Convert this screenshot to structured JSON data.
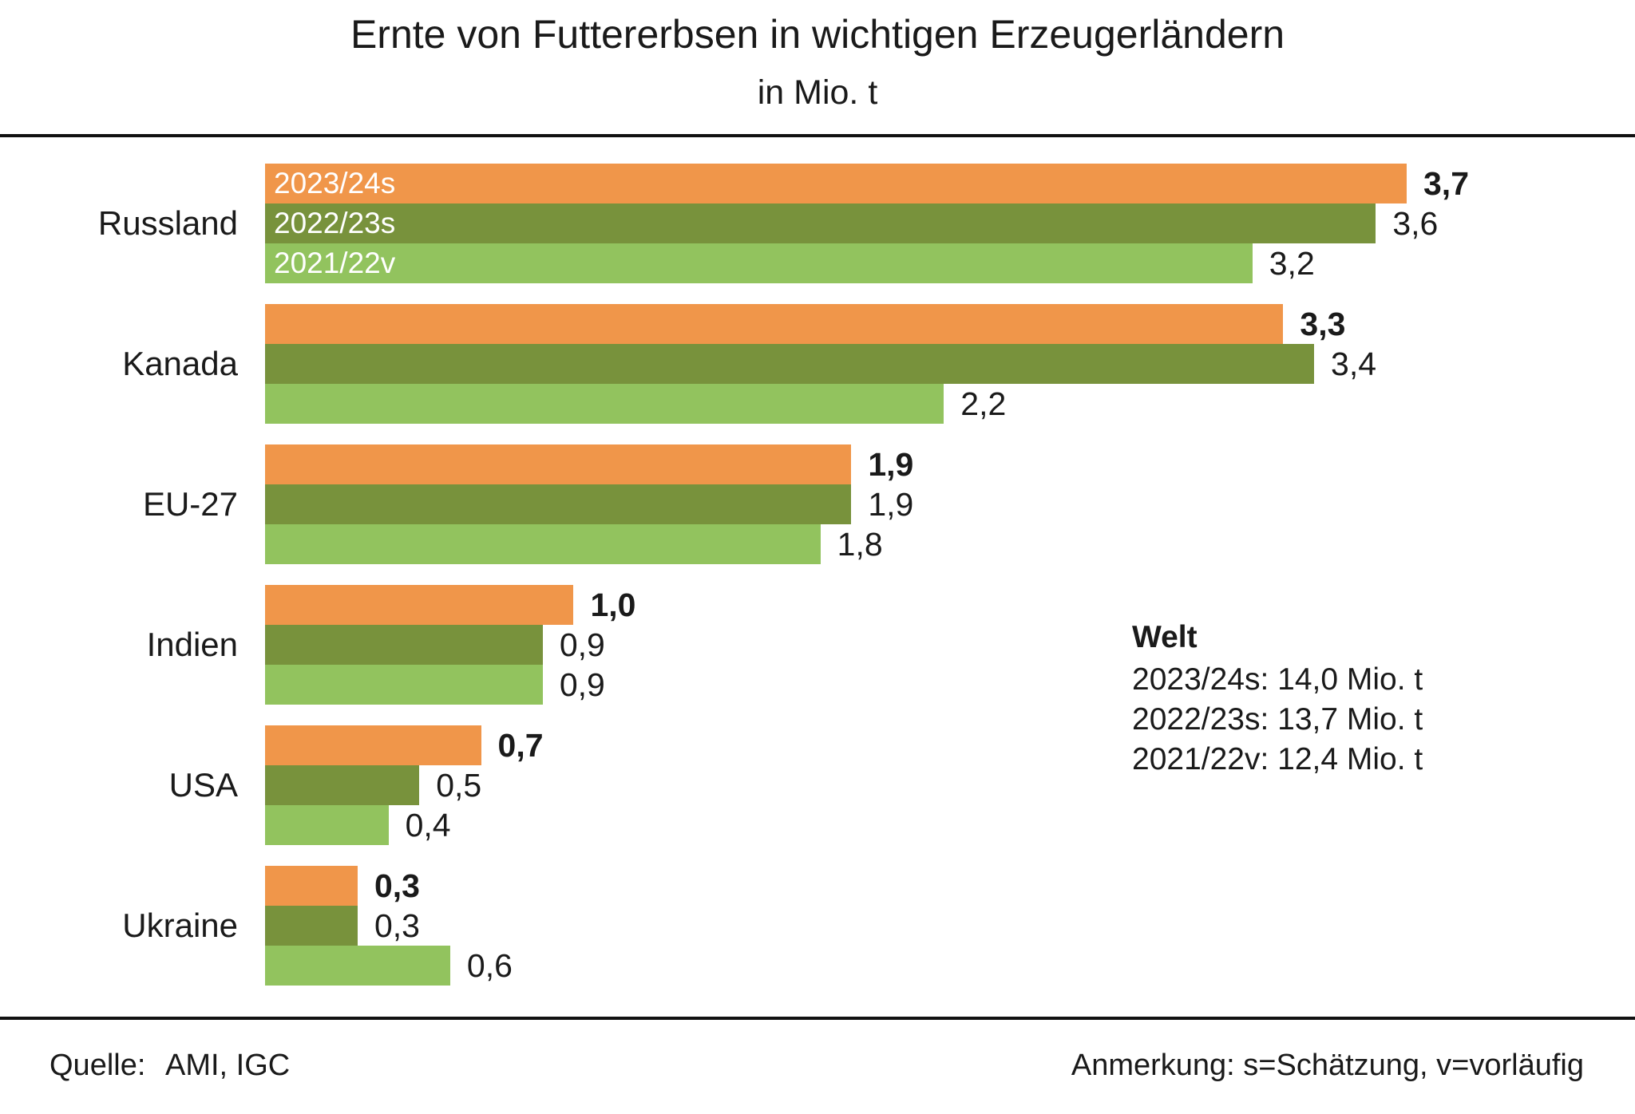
{
  "header": {
    "title": "Ernte von Futtererbsen in wichtigen Erzeugerländern",
    "subtitle": "in Mio. t"
  },
  "chart_data": {
    "type": "bar",
    "orientation": "horizontal",
    "title": "Ernte von Futtererbsen in wichtigen Erzeugerländern",
    "subtitle_unit": "in Mio. t",
    "categories": [
      "Russland",
      "Kanada",
      "EU-27",
      "Indien",
      "USA",
      "Ukraine"
    ],
    "series": [
      {
        "name": "2023/24s",
        "color": "#F0964A",
        "values": [
          3.7,
          3.3,
          1.9,
          1.0,
          0.7,
          0.3
        ],
        "display_labels": [
          "3,7",
          "3,3",
          "1,9",
          "1,0",
          "0,7",
          "0,3"
        ]
      },
      {
        "name": "2022/23s",
        "color": "#78923C",
        "values": [
          3.6,
          3.4,
          1.9,
          0.9,
          0.5,
          0.3
        ],
        "display_labels": [
          "3,6",
          "3,4",
          "1,9",
          "0,9",
          "0,5",
          "0,3"
        ]
      },
      {
        "name": "2021/22v",
        "color": "#92C35E",
        "values": [
          3.2,
          2.2,
          1.8,
          0.9,
          0.4,
          0.6
        ],
        "display_labels": [
          "3,2",
          "2,2",
          "1,8",
          "0,9",
          "0,4",
          "0,6"
        ]
      }
    ],
    "xlim": [
      0,
      4.44
    ],
    "grid": false,
    "legend_position": "inside-first-group-bars",
    "annotation": {
      "title": "Welt",
      "lines": [
        "2023/24s: 14,0 Mio. t",
        "2022/23s: 13,7 Mio. t",
        "2021/22v: 12,4 Mio. t"
      ]
    }
  },
  "footer": {
    "source_label": "Quelle:",
    "source_value": "AMI, IGC",
    "note": "Anmerkung: s=Schätzung, v=vorläufig"
  },
  "colors": {
    "text": "#1a1a1a",
    "rule": "#111111",
    "in_bar_label": "#ffffff"
  }
}
